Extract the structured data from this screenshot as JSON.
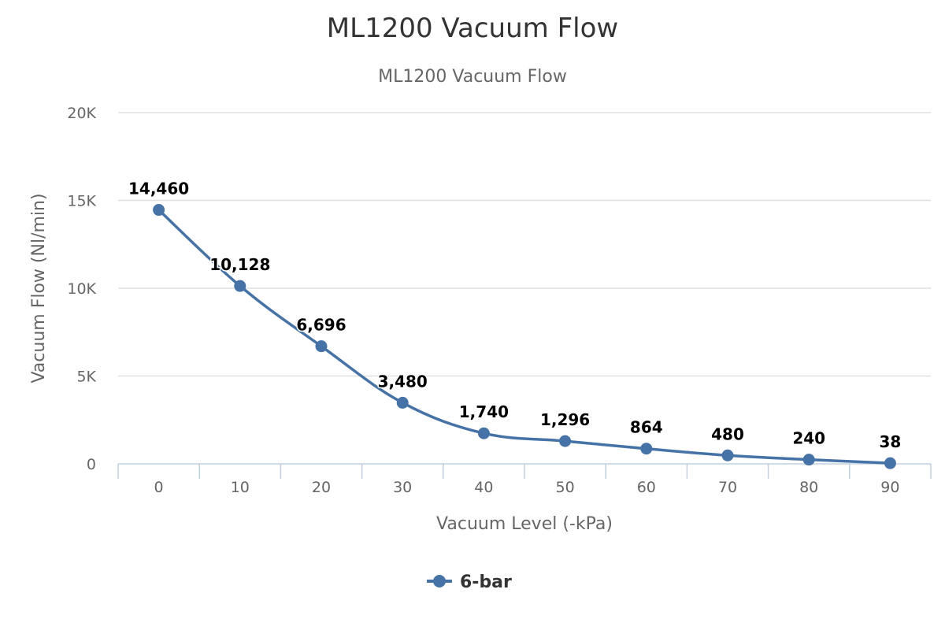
{
  "chart_data": {
    "type": "line",
    "title": "ML1200 Vacuum Flow",
    "subtitle": "ML1200 Vacuum Flow",
    "xlabel": "Vacuum Level (-kPa)",
    "ylabel": "Vacuum Flow (Nl/min)",
    "categories": [
      "0",
      "10",
      "20",
      "30",
      "40",
      "50",
      "60",
      "70",
      "80",
      "90"
    ],
    "ylim": [
      0,
      20000
    ],
    "yticks": [
      0,
      5000,
      10000,
      15000,
      20000
    ],
    "ytick_labels": [
      "0",
      "5K",
      "10K",
      "15K",
      "20K"
    ],
    "grid": true,
    "legend_position": "bottom-center",
    "series": [
      {
        "name": "6-bar",
        "color": "#4572a7",
        "values": [
          14460,
          10128,
          6696,
          3480,
          1740,
          1296,
          864,
          480,
          240,
          38
        ],
        "labels": [
          "14,460",
          "10,128",
          "6,696",
          "3,480",
          "1,740",
          "1,296",
          "864",
          "480",
          "240",
          "38"
        ]
      }
    ]
  }
}
